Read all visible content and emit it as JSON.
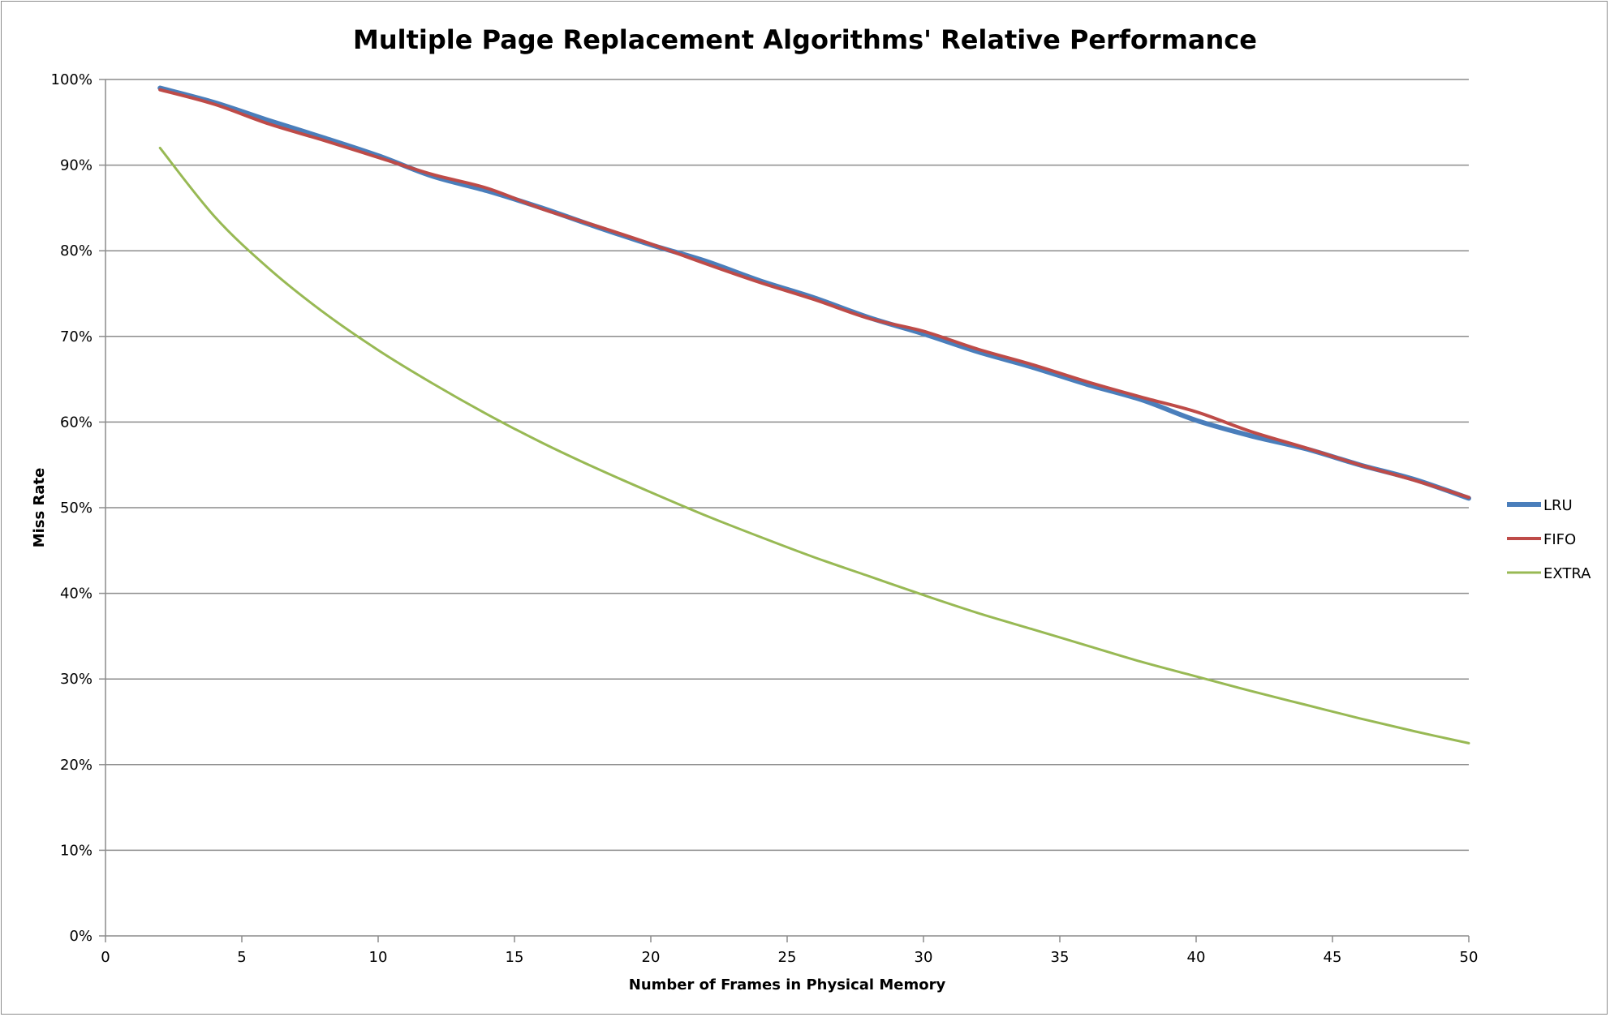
{
  "chart_data": {
    "type": "line",
    "title": "Multiple Page Replacement Algorithms' Relative Performance",
    "xlabel": "Number of Frames in Physical Memory",
    "ylabel": "Miss Rate",
    "xlim": [
      0,
      50
    ],
    "ylim": [
      0,
      100
    ],
    "x_ticks": [
      "0",
      "5",
      "10",
      "15",
      "20",
      "25",
      "30",
      "35",
      "40",
      "45",
      "50"
    ],
    "y_ticks": [
      "0%",
      "10%",
      "20%",
      "30%",
      "40%",
      "50%",
      "60%",
      "70%",
      "80%",
      "90%",
      "100%"
    ],
    "grid": true,
    "legend_position": "right",
    "x": [
      2,
      4,
      6,
      8,
      10,
      12,
      14,
      16,
      18,
      20,
      22,
      24,
      26,
      28,
      30,
      32,
      34,
      36,
      38,
      40,
      42,
      44,
      46,
      48,
      50
    ],
    "series": [
      {
        "name": "LRU",
        "color": "#4a7ebb",
        "values": [
          99.0,
          97.3,
          95.2,
          93.2,
          91.1,
          88.7,
          87.0,
          85.0,
          82.8,
          80.7,
          78.8,
          76.5,
          74.5,
          72.2,
          70.3,
          68.2,
          66.4,
          64.4,
          62.6,
          60.2,
          58.4,
          56.9,
          55.0,
          53.3,
          51.1
        ]
      },
      {
        "name": "FIFO",
        "color": "#be4b48",
        "values": [
          98.8,
          97.1,
          94.8,
          92.9,
          90.9,
          88.9,
          87.3,
          84.9,
          82.9,
          80.8,
          78.5,
          76.3,
          74.3,
          72.1,
          70.6,
          68.5,
          66.7,
          64.7,
          62.9,
          61.2,
          58.9,
          57.0,
          55.0,
          53.2,
          51.2
        ]
      },
      {
        "name": "EXTRA",
        "color": "#98b954",
        "values": [
          92.0,
          84.0,
          77.9,
          72.8,
          68.4,
          64.5,
          60.9,
          57.6,
          54.6,
          51.8,
          49.1,
          46.6,
          44.2,
          42.0,
          39.8,
          37.7,
          35.8,
          33.9,
          32.0,
          30.3,
          28.6,
          27.0,
          25.4,
          23.9,
          22.5
        ]
      }
    ]
  }
}
